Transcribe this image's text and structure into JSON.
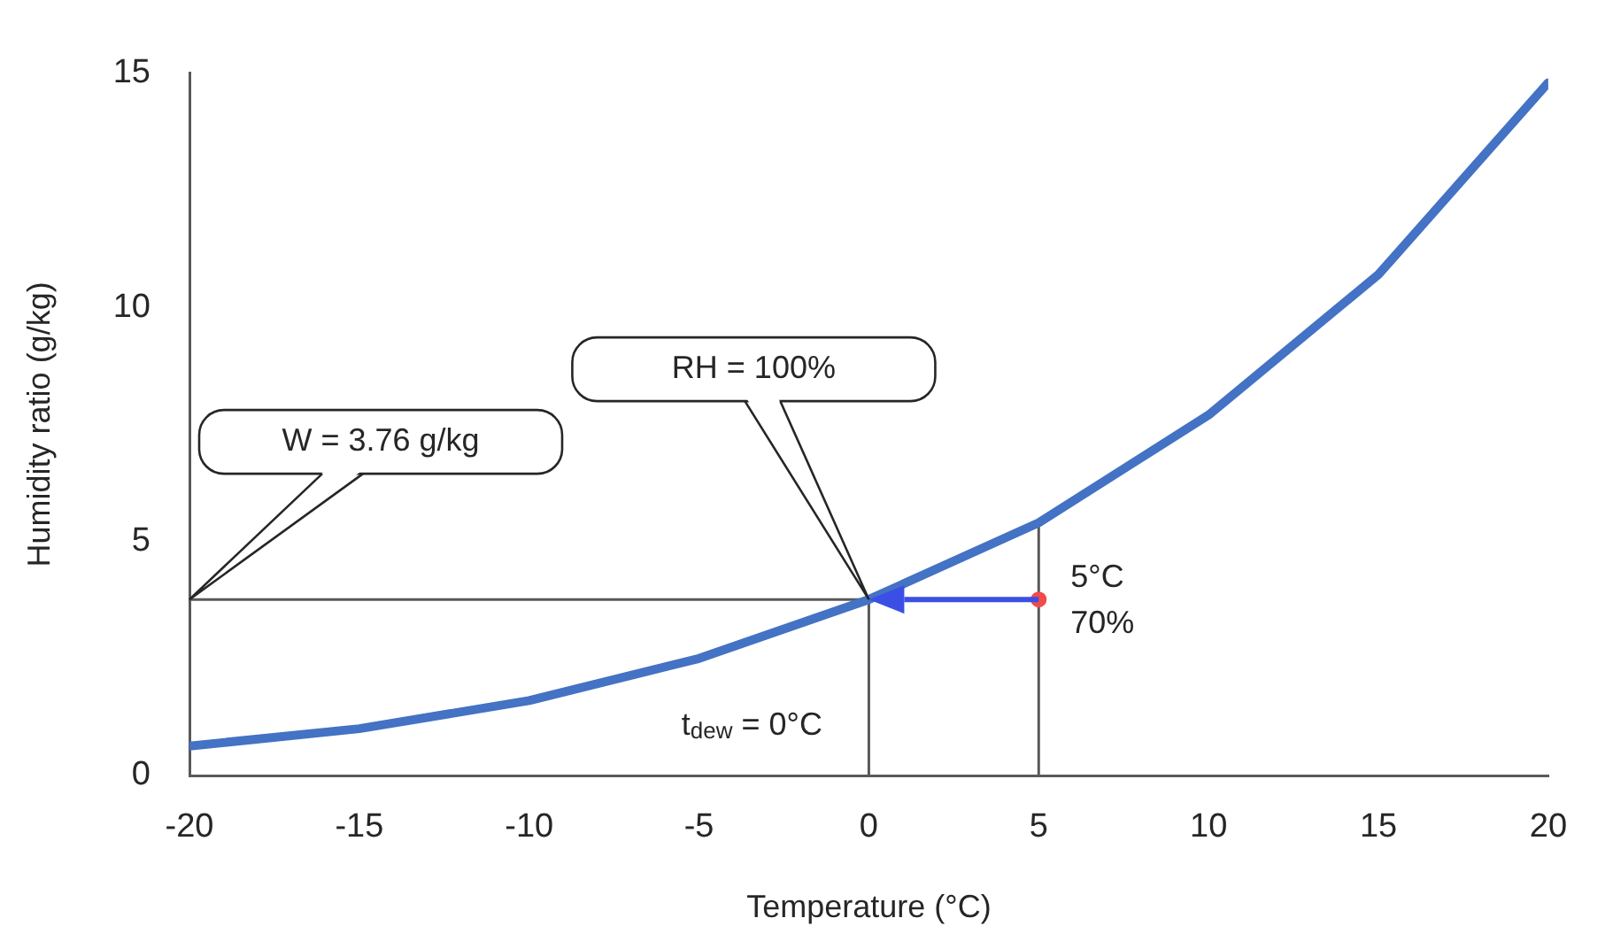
{
  "chart_data": {
    "type": "line",
    "xlabel": "Temperature (°C)",
    "ylabel": "Humidity ratio (g/kg)",
    "xlim": [
      -20,
      20
    ],
    "ylim": [
      0,
      15
    ],
    "xticks": [
      -20,
      -15,
      -10,
      -5,
      0,
      5,
      10,
      15,
      20
    ],
    "yticks": [
      0,
      5,
      10,
      15
    ],
    "series": [
      {
        "color": "#4472c4",
        "x": [
          -20,
          -15,
          -10,
          -5,
          0,
          5,
          10,
          15,
          20
        ],
        "values": [
          0.63,
          1.0,
          1.6,
          2.5,
          3.76,
          5.4,
          7.7,
          10.7,
          14.8
        ]
      },
      {
        "color": "#595959",
        "x": [
          -20,
          0
        ],
        "values": [
          3.76,
          3.76
        ]
      },
      {
        "color": "#595959",
        "x": [
          0,
          0
        ],
        "values": [
          0,
          3.76
        ]
      },
      {
        "color": "#595959",
        "x": [
          5,
          5
        ],
        "values": [
          0,
          5.4
        ]
      },
      {
        "type": "scatter",
        "marker": "circle",
        "color": "#f24b4b",
        "x": [
          5
        ],
        "values": [
          3.76
        ]
      }
    ],
    "annotations": [
      "W = 3.76 g/kg",
      "RH = 100%",
      {
        "text": "t$_{dew}$ = 0°C",
        "x": 0,
        "y": 0
      },
      {
        "text": "5°C\n70%",
        "x": 5,
        "y": 3.76
      }
    ]
  }
}
